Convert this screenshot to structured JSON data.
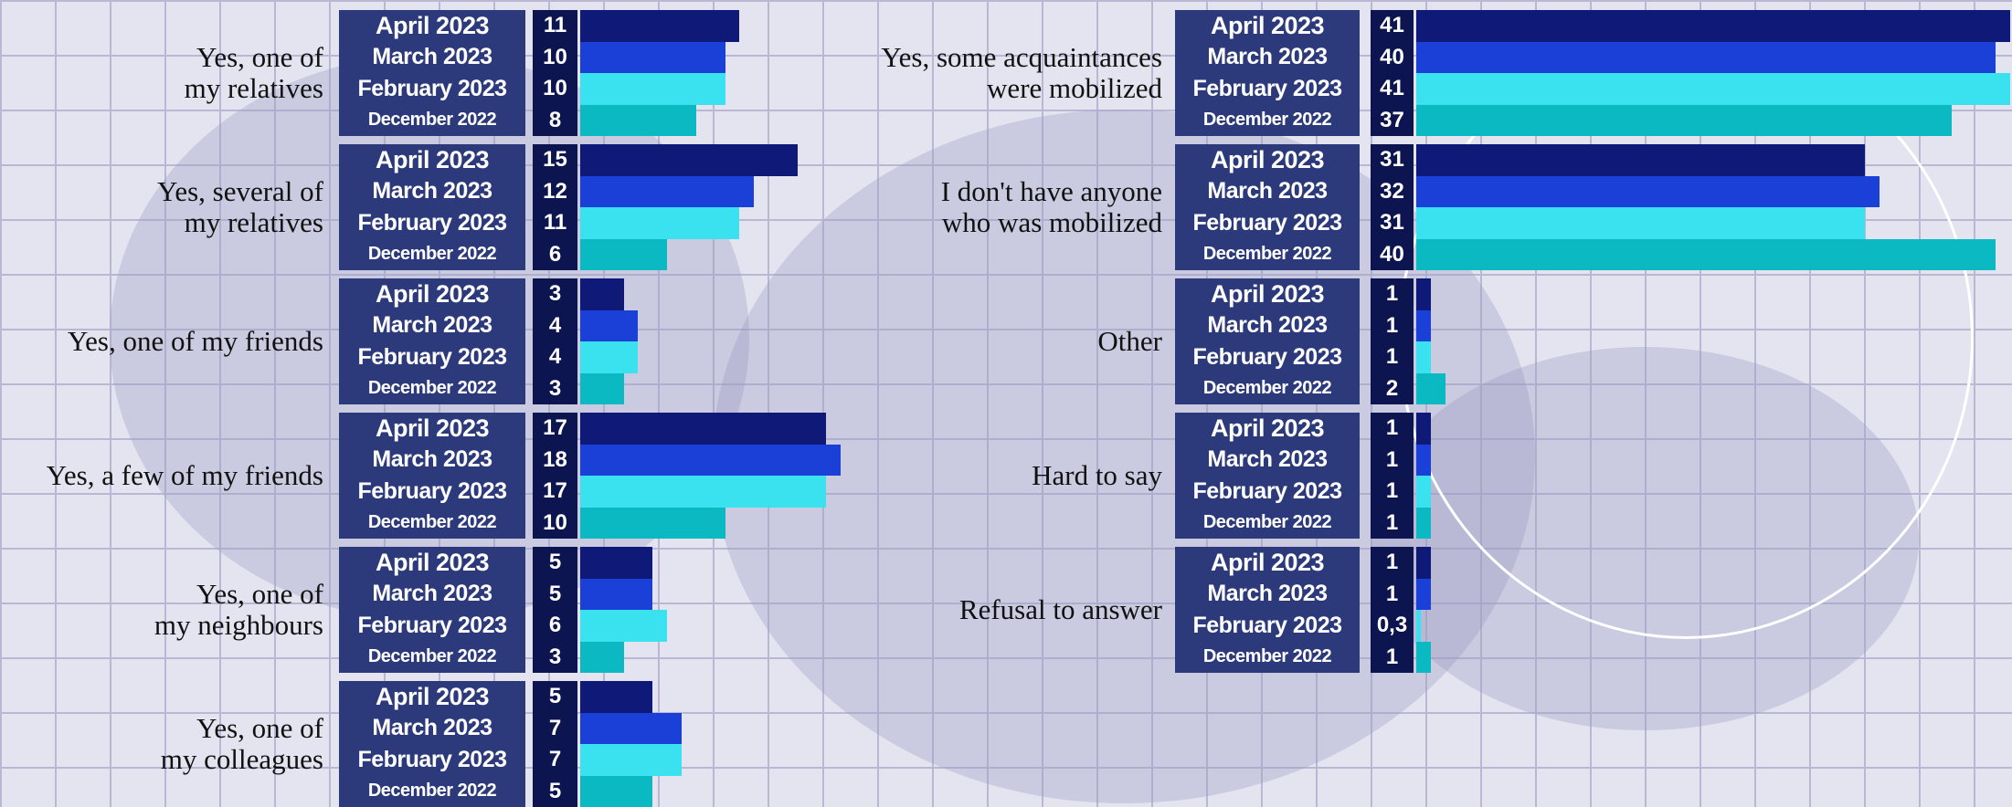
{
  "chart_data": [
    {
      "type": "bar",
      "categories": [
        "Yes, one of\nmy relatives",
        "Yes, several of\nmy relatives",
        "Yes, one of my friends",
        "Yes, a few of my friends",
        "Yes, one of\nmy neighbours",
        "Yes, one of\nmy colleagues"
      ],
      "series": [
        {
          "name": "April 2023",
          "color": "#0f1a78",
          "values": [
            11,
            15,
            3,
            17,
            5,
            5
          ]
        },
        {
          "name": "March 2023",
          "color": "#1b40d8",
          "values": [
            10,
            12,
            4,
            18,
            5,
            7
          ]
        },
        {
          "name": "February 2023",
          "color": "#3ae2f0",
          "values": [
            10,
            11,
            4,
            17,
            6,
            7
          ]
        },
        {
          "name": "December 2022",
          "color": "#0bb9c2",
          "values": [
            8,
            6,
            3,
            10,
            3,
            5
          ]
        }
      ]
    },
    {
      "type": "bar",
      "categories": [
        "Yes, some acquaintances\nwere mobilized",
        "I don't have anyone\nwho was mobilized",
        "Other",
        "Hard to say",
        "Refusal to answer"
      ],
      "series": [
        {
          "name": "April 2023",
          "color": "#0f1a78",
          "values": [
            41,
            31,
            1,
            1,
            1
          ]
        },
        {
          "name": "March 2023",
          "color": "#1b40d8",
          "values": [
            40,
            32,
            1,
            1,
            1
          ]
        },
        {
          "name": "February 2023",
          "color": "#3ae2f0",
          "values": [
            41,
            31,
            1,
            1,
            0.3
          ],
          "value_labels": [
            "41",
            "31",
            "1",
            "1",
            "0,3"
          ]
        },
        {
          "name": "December 2022",
          "color": "#0bb9c2",
          "values": [
            37,
            40,
            2,
            1,
            1
          ]
        }
      ]
    }
  ]
}
